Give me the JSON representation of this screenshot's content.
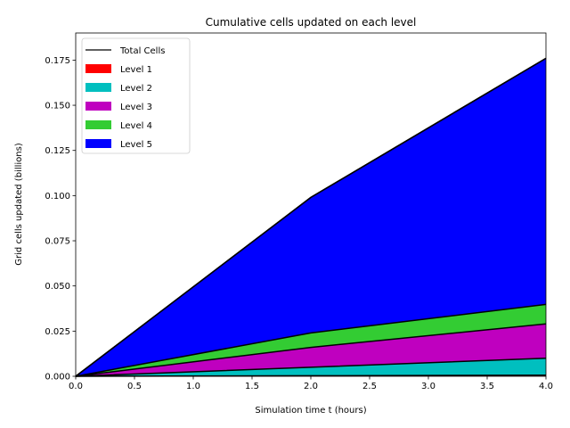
{
  "chart_data": {
    "type": "area",
    "title": "Cumulative cells updated on each level",
    "xlabel": "Simulation time t (hours)",
    "ylabel": "Grid cells updated (billions)",
    "xlim": [
      0,
      4
    ],
    "ylim": [
      0,
      0.19
    ],
    "grid": false,
    "legend_position": "top-left",
    "stacked": true,
    "x": [
      0,
      2,
      4
    ],
    "x_ticks": [
      0,
      0.5,
      1,
      1.5,
      2,
      2.5,
      3,
      3.5,
      4
    ],
    "x_tick_labels": [
      "0.0",
      "0.5",
      "1.0",
      "1.5",
      "2.0",
      "2.5",
      "3.0",
      "3.5",
      "4.0"
    ],
    "y_ticks": [
      0,
      0.025,
      0.05,
      0.075,
      0.1,
      0.125,
      0.15,
      0.175
    ],
    "y_tick_labels": [
      "0.000",
      "0.025",
      "0.050",
      "0.075",
      "0.100",
      "0.125",
      "0.150",
      "0.175"
    ],
    "total": {
      "name": "Total Cells",
      "color": "#000000",
      "values": [
        0,
        0.099,
        0.176
      ]
    },
    "series": [
      {
        "name": "Level 1",
        "color": "#ff0000",
        "values": [
          0,
          0.0003,
          0.0006
        ]
      },
      {
        "name": "Level 2",
        "color": "#00bfbf",
        "values": [
          0,
          0.0047,
          0.0094
        ]
      },
      {
        "name": "Level 3",
        "color": "#bf00bf",
        "values": [
          0,
          0.011,
          0.019
        ]
      },
      {
        "name": "Level 4",
        "color": "#33cc33",
        "values": [
          0,
          0.008,
          0.0108
        ]
      },
      {
        "name": "Level 5",
        "color": "#0000ff",
        "values": [
          0,
          0.075,
          0.1362
        ]
      }
    ]
  }
}
